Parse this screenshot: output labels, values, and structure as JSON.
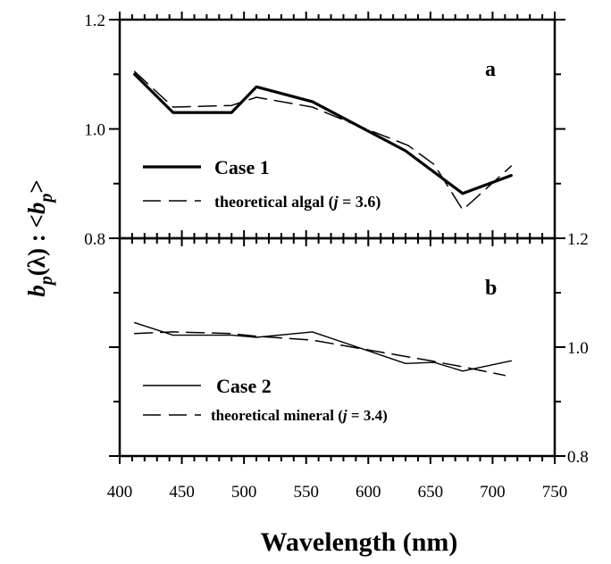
{
  "chart_data": [
    {
      "type": "line",
      "panel_label": "a",
      "x_range": [
        400,
        750
      ],
      "ylim": [
        0.8,
        1.2
      ],
      "yticks": [
        "0.8",
        "1.0",
        "1.2"
      ],
      "y_axis_side": "left",
      "legend_placement": "bottom-left",
      "series": [
        {
          "name": "Case 1",
          "style": "solid-thick",
          "x": [
            412,
            443,
            490,
            510,
            555,
            630,
            676,
            715
          ],
          "y": [
            1.1,
            1.03,
            1.03,
            1.077,
            1.05,
            0.96,
            0.882,
            0.915
          ]
        },
        {
          "name_prefix": "theoretical algal (",
          "name_var": "j",
          "name_suffix": " = 3.6)",
          "style": "dashed",
          "x": [
            412,
            443,
            490,
            510,
            555,
            585,
            632,
            653,
            676,
            715
          ],
          "y": [
            1.105,
            1.04,
            1.043,
            1.058,
            1.04,
            1.012,
            0.97,
            0.935,
            0.852,
            0.932
          ]
        }
      ]
    },
    {
      "type": "line",
      "panel_label": "b",
      "x_range": [
        400,
        750
      ],
      "ylim": [
        0.8,
        1.2
      ],
      "yticks": [
        "0.8",
        "1.0",
        "1.2"
      ],
      "y_axis_side": "right",
      "legend_placement": "bottom-left",
      "series": [
        {
          "name": "Case 2",
          "style": "solid-thin",
          "x": [
            412,
            443,
            490,
            510,
            555,
            630,
            653,
            676,
            715
          ],
          "y": [
            1.045,
            1.022,
            1.022,
            1.018,
            1.028,
            0.97,
            0.972,
            0.956,
            0.975
          ]
        },
        {
          "name_prefix": "theoretical mineral (",
          "name_var": "j",
          "name_suffix": " = 3.4)",
          "style": "dashed",
          "x": [
            412,
            443,
            490,
            510,
            555,
            600,
            650,
            676,
            710
          ],
          "y": [
            1.025,
            1.028,
            1.025,
            1.02,
            1.013,
            0.995,
            0.975,
            0.964,
            0.948
          ]
        }
      ]
    }
  ],
  "xticks": [
    "400",
    "450",
    "500",
    "550",
    "600",
    "650",
    "700",
    "750"
  ],
  "xlabel": "Wavelength (nm)",
  "ylabel": {
    "b1": "b",
    "p1": "p",
    "mid": "(λ) : <",
    "b2": "b",
    "p2": "p",
    "end": ">"
  }
}
